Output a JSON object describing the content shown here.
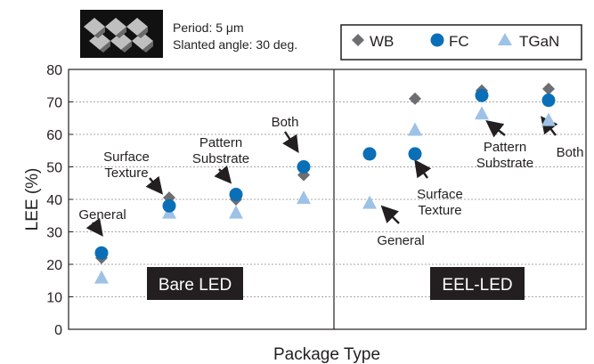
{
  "inset": {
    "period_text": "Period: 5 μm",
    "angle_text": "Slanted angle: 30 deg."
  },
  "chart_data": {
    "type": "scatter",
    "xlabel": "Package Type",
    "ylabel": "LEE (%)",
    "ylim": [
      0,
      80
    ],
    "yticks": [
      0,
      10,
      20,
      30,
      40,
      50,
      60,
      70,
      80
    ],
    "grid": true,
    "legend_position": "top-right",
    "panels": [
      {
        "label": "Bare LED",
        "categories": [
          "General",
          "Surface Texture",
          "Pattern Substrate",
          "Both"
        ]
      },
      {
        "label": "EEL-LED",
        "categories": [
          "General",
          "Surface Texture",
          "Pattern Substrate",
          "Both"
        ]
      }
    ],
    "categories": [
      "General",
      "Surface Texture",
      "Pattern Substrate",
      "Both",
      "General",
      "Surface Texture",
      "Pattern Substrate",
      "Both"
    ],
    "category_labels": {
      "general": "General",
      "surface": [
        "Surface",
        "Texture"
      ],
      "pattern": [
        "Pattern",
        "Substrate"
      ],
      "both": "Both"
    },
    "series": [
      {
        "name": "WB",
        "marker": "diamond",
        "color": "#6d6e71",
        "values": [
          22,
          40.5,
          40,
          47.5,
          54,
          71,
          73.5,
          74
        ]
      },
      {
        "name": "FC",
        "marker": "circle",
        "color": "#0a6fb7",
        "values": [
          23.5,
          38,
          41.5,
          50,
          54,
          54,
          72,
          70.5
        ]
      },
      {
        "name": "TGaN",
        "marker": "triangle",
        "color": "#9ec2e6",
        "values": [
          16,
          36,
          36,
          40.5,
          39,
          61.5,
          66.5,
          64.5
        ]
      }
    ]
  }
}
